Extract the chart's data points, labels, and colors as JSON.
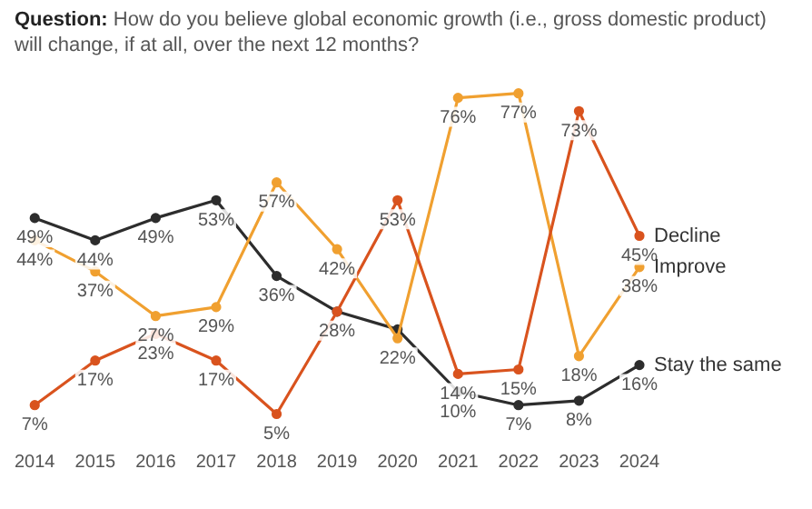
{
  "chart_data": {
    "type": "line",
    "title": "Question: How do you believe global economic growth (i.e., gross domestic product) will change, if at all, over the next 12 months?",
    "categories": [
      "2014",
      "2015",
      "2016",
      "2017",
      "2018",
      "2019",
      "2020",
      "2021",
      "2022",
      "2023",
      "2024"
    ],
    "series": [
      {
        "name": "Decline",
        "color": "#d9531e",
        "values": [
          7,
          17,
          23,
          17,
          5,
          28,
          53,
          14,
          15,
          73,
          45
        ],
        "value_labels": [
          "7%",
          "17%",
          "23%",
          "17%",
          "5%",
          "28%",
          "53%",
          "14%",
          "15%",
          "73%",
          "45%"
        ]
      },
      {
        "name": "Improve",
        "color": "#f0a030",
        "values": [
          44,
          37,
          27,
          29,
          57,
          42,
          22,
          76,
          77,
          18,
          38
        ],
        "value_labels": [
          "44%",
          "37%",
          "27%",
          "29%",
          "57%",
          "42%",
          "22%",
          "76%",
          "77%",
          "18%",
          "38%"
        ]
      },
      {
        "name": "Stay the same",
        "color": "#2d2d2d",
        "values": [
          49,
          44,
          49,
          53,
          36,
          28,
          24,
          10,
          7,
          8,
          16
        ],
        "value_labels": [
          "49%",
          "44%",
          "49%",
          "53%",
          "36%",
          null,
          null,
          "10%",
          "7%",
          "8%",
          "16%"
        ]
      }
    ],
    "tick_labels": "x",
    "grid": false,
    "legend": false,
    "marker": "circle",
    "line_style": "solid"
  }
}
